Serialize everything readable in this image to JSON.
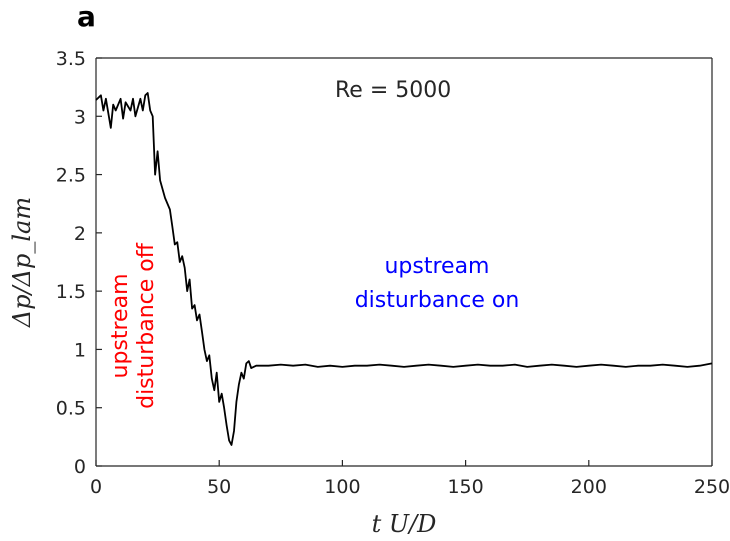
{
  "chart_data": {
    "type": "line",
    "panel_label": "a",
    "title": "",
    "xlabel": "t U/D",
    "ylabel": "Δp/Δp_lam",
    "xlim": [
      0,
      250
    ],
    "ylim": [
      0,
      3.5
    ],
    "x_ticks": [
      "0",
      "50",
      "100",
      "150",
      "200",
      "250"
    ],
    "y_ticks": [
      "0",
      "0.5",
      "1",
      "1.5",
      "2",
      "2.5",
      "3",
      "3.5"
    ],
    "grid": false,
    "line_color": "#000000",
    "series": [
      {
        "x": [
          0,
          2,
          3,
          4,
          6,
          7,
          8,
          10,
          11,
          12,
          14,
          15,
          16,
          18,
          19,
          20,
          21,
          22,
          23,
          24,
          25,
          26,
          28,
          30,
          31,
          32,
          33,
          34,
          35,
          36,
          37,
          38,
          39,
          40,
          41,
          42,
          43,
          44,
          45,
          46,
          47,
          48,
          49,
          50,
          51,
          52,
          53,
          54,
          55,
          56,
          57,
          58,
          59,
          60,
          61,
          62,
          63,
          65,
          70,
          75,
          80,
          85,
          90,
          95,
          100,
          105,
          110,
          115,
          120,
          125,
          130,
          135,
          140,
          145,
          150,
          155,
          160,
          165,
          170,
          175,
          180,
          185,
          190,
          195,
          200,
          205,
          210,
          215,
          220,
          225,
          230,
          235,
          240,
          245,
          250
        ],
        "y": [
          3.14,
          3.18,
          3.05,
          3.15,
          2.9,
          3.1,
          3.05,
          3.15,
          2.98,
          3.12,
          3.05,
          3.15,
          3.0,
          3.15,
          3.05,
          3.18,
          3.2,
          3.05,
          3.0,
          2.5,
          2.7,
          2.45,
          2.3,
          2.2,
          2.05,
          1.9,
          1.92,
          1.75,
          1.8,
          1.7,
          1.5,
          1.6,
          1.35,
          1.38,
          1.25,
          1.3,
          1.15,
          1.0,
          0.9,
          0.95,
          0.75,
          0.65,
          0.8,
          0.55,
          0.62,
          0.5,
          0.35,
          0.22,
          0.18,
          0.3,
          0.55,
          0.7,
          0.8,
          0.75,
          0.88,
          0.9,
          0.84,
          0.86,
          0.86,
          0.87,
          0.86,
          0.87,
          0.85,
          0.86,
          0.85,
          0.86,
          0.86,
          0.87,
          0.86,
          0.85,
          0.86,
          0.87,
          0.86,
          0.85,
          0.86,
          0.87,
          0.86,
          0.86,
          0.87,
          0.85,
          0.86,
          0.87,
          0.86,
          0.85,
          0.86,
          0.87,
          0.86,
          0.85,
          0.86,
          0.86,
          0.87,
          0.86,
          0.85,
          0.86,
          0.88
        ]
      }
    ],
    "annotations": [
      {
        "text": "Re = 5000",
        "color": "#262626"
      },
      {
        "text": "upstream",
        "color": "#0000ff"
      },
      {
        "text": "disturbance on",
        "color": "#0000ff"
      },
      {
        "text": "upstream",
        "color": "#ff0000"
      },
      {
        "text": "disturbance off",
        "color": "#ff0000"
      }
    ]
  }
}
